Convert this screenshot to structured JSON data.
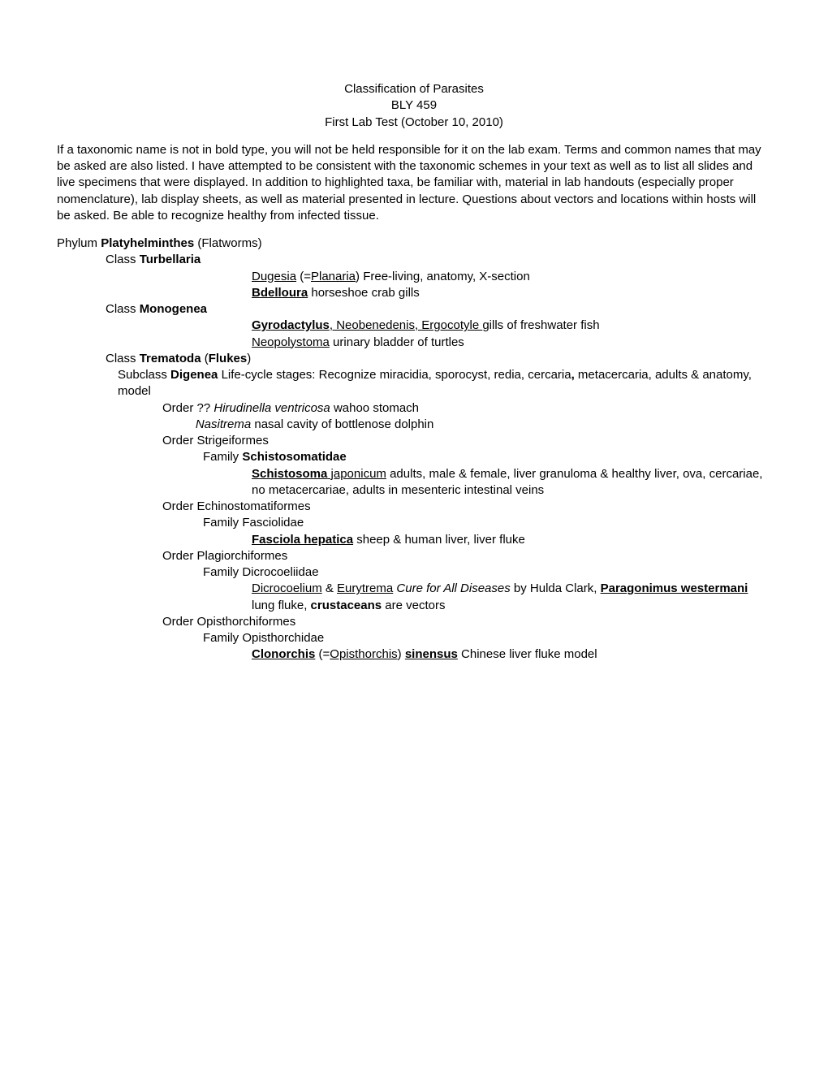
{
  "header": {
    "title1": "Classification of Parasites",
    "title2": "BLY 459",
    "title3": "First Lab Test (October 10, 2010)"
  },
  "intro": "If a taxonomic name is not in bold type, you will not be held responsible for it on the lab exam. Terms and common names that may be asked are also listed. I have attempted to be consistent with the taxonomic schemes in your text as well as to list all slides and live specimens that were displayed. In addition to highlighted taxa, be familiar with, material in lab handouts (especially proper nomenclature), lab display sheets, as well as material presented in lecture. Questions about vectors and locations within hosts will be asked. Be able to recognize healthy from infected tissue.",
  "t": {
    "phylum": "Phylum ",
    "platy_bold": "Platyhelminthes",
    "platy_paren": " (Flatworms)",
    "class_pre": "Class ",
    "turbellaria": "Turbellaria",
    "dugesia": "Dugesia",
    "dugesia_paren1": " (=",
    "planaria": "Planaria",
    "dugesia_rest": ") Free-living, anatomy, X-section",
    "bdelloura": "Bdelloura",
    "bdelloura_rest": " horseshoe crab gills",
    "monogenea": "Monogenea",
    "gyro": "Gyrodactylus",
    "gyro_comma": ", Neobenedenis, Ergocotyle ",
    "gyro_rest": "gills of freshwater fish",
    "neopoly": "Neopolystoma",
    "neopoly_rest": " urinary bladder of turtles",
    "trematoda": "Trematoda",
    "flukes": "Flukes",
    "subclass_pre": "Subclass ",
    "digenea": "Digenea",
    "digenea_rest1": " Life-cycle stages: Recognize miracidia, sporocyst, redia, cercaria",
    "digenea_comma": ",",
    "digenea_rest2": " metacercaria, adults & anatomy, model",
    "order_qq": "Order ?? ",
    "hirud": "Hirudinella ventricosa",
    "hirud_rest": " wahoo stomach",
    "nasit": "Nasitrema",
    "nasit_rest": " nasal cavity of bottlenose dolphin",
    "order_strig": "Order Strigeiformes",
    "family_pre": "Family ",
    "schisto_fam": "Schistosomatidae",
    "schisto": "Schistosoma",
    "schisto_sp": " japonicum",
    "schisto_rest": " adults, male & female, liver granuloma & healthy liver, ova, cercariae, no metacercariae, adults in mesenteric intestinal veins",
    "order_echino": "Order Echinostomatiformes",
    "family_fasc": "Family Fasciolidae",
    "fasc": "Fasciola hepatica",
    "fasc_rest": " sheep & human liver, liver fluke",
    "order_plag": "Order Plagiorchiformes",
    "family_dicro": "Family Dicrocoeliidae",
    "dicro": "Dicrocoelium",
    "amp": " & ",
    "eury": "Eurytrema",
    "cure": "Cure for All Diseases",
    "by_hulda": " by Hulda Clark, ",
    "parag": "Paragonimus westermani",
    "parag_rest": " lung fluke, ",
    "crust": "crustaceans",
    "vectors": " are vectors",
    "order_opis": "Order Opisthorchiformes",
    "family_opis": "Family Opisthorchidae",
    "clon": "Clonorchis",
    "clon_paren1": " (=",
    "opis": "Opisthorchis",
    "clon_paren2": ") ",
    "sinensus": "sinensus",
    "clon_rest": " Chinese liver fluke model"
  }
}
